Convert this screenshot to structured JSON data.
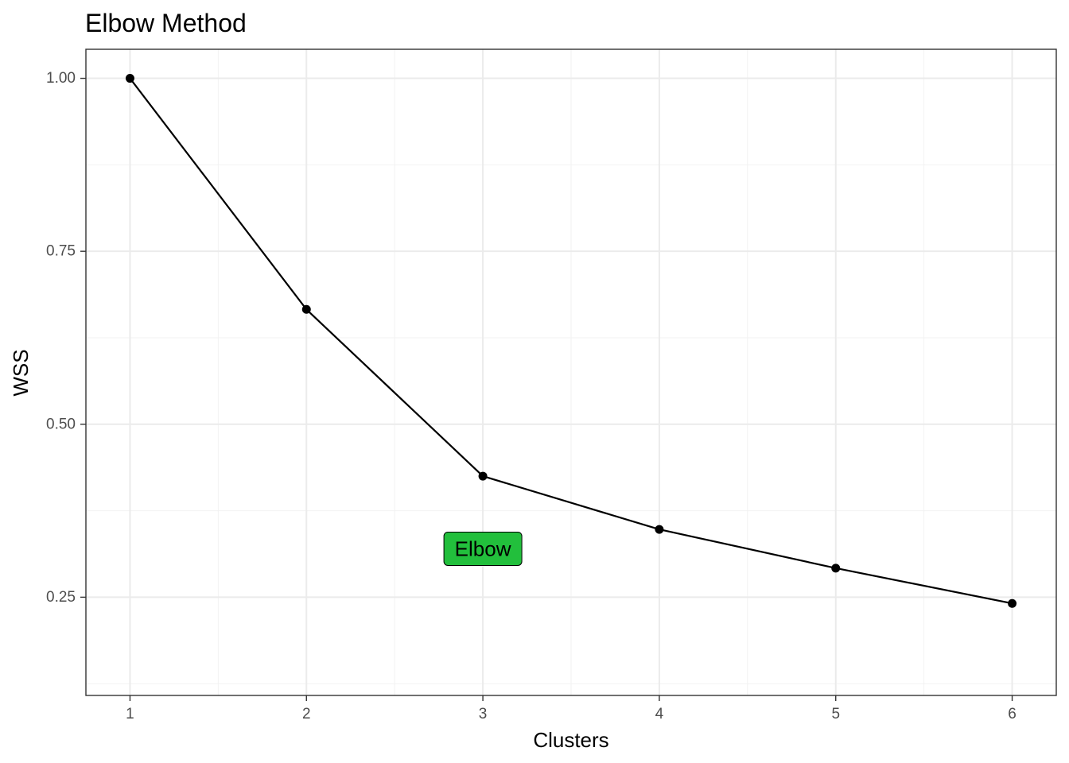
{
  "chart_data": {
    "type": "line",
    "title": "Elbow Method",
    "xlabel": "Clusters",
    "ylabel": "WSS",
    "x": [
      1,
      2,
      3,
      4,
      5,
      6
    ],
    "values": [
      1.0,
      0.666,
      0.425,
      0.348,
      0.292,
      0.241
    ],
    "xlim": [
      0.75,
      6.25
    ],
    "ylim": [
      0.108,
      1.042
    ],
    "x_ticks": [
      "1",
      "2",
      "3",
      "4",
      "5",
      "6"
    ],
    "y_ticks": [
      "0.25",
      "0.50",
      "0.75",
      "1.00"
    ],
    "grid": true,
    "annotation": {
      "text": "Elbow",
      "x": 3,
      "y": 0.32,
      "fill_color": "#22bf3c"
    },
    "colors": {
      "line": "#000000",
      "point": "#000000",
      "grid_major": "#ebebeb",
      "grid_minor": "#f2f2f2",
      "panel_border": "#333333"
    }
  }
}
